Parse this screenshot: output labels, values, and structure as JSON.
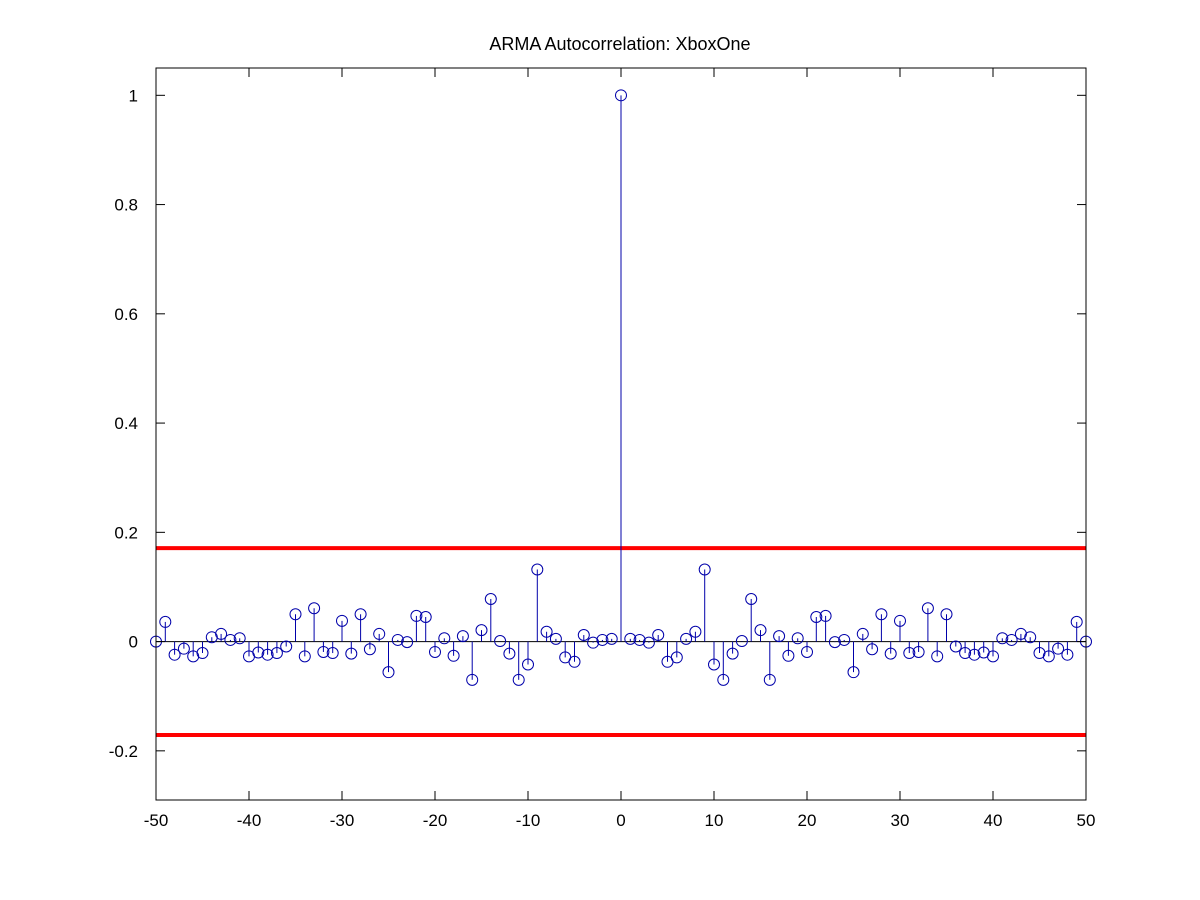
{
  "chart_data": {
    "type": "stem",
    "title": "ARMA Autocorrelation: XboxOne",
    "xlabel": "",
    "ylabel": "",
    "xlim": [
      -50,
      50
    ],
    "ylim": [
      -0.29,
      1.05
    ],
    "xticks": [
      -50,
      -40,
      -30,
      -20,
      -10,
      0,
      10,
      20,
      30,
      40,
      50
    ],
    "xtick_labels": [
      "-50",
      "-40",
      "-30",
      "-20",
      "-10",
      "0",
      "10",
      "20",
      "30",
      "40",
      "50"
    ],
    "yticks": [
      -0.2,
      0,
      0.2,
      0.4,
      0.6,
      0.8,
      1
    ],
    "ytick_labels": [
      "-0.2",
      "0",
      "0.2",
      "0.4",
      "0.6",
      "0.8",
      "1"
    ],
    "grid": false,
    "x": [
      -50,
      -49,
      -48,
      -47,
      -46,
      -45,
      -44,
      -43,
      -42,
      -41,
      -40,
      -39,
      -38,
      -37,
      -36,
      -35,
      -34,
      -33,
      -32,
      -31,
      -30,
      -29,
      -28,
      -27,
      -26,
      -25,
      -24,
      -23,
      -22,
      -21,
      -20,
      -19,
      -18,
      -17,
      -16,
      -15,
      -14,
      -13,
      -12,
      -11,
      -10,
      -9,
      -8,
      -7,
      -6,
      -5,
      -4,
      -3,
      -2,
      -1,
      0,
      1,
      2,
      3,
      4,
      5,
      6,
      7,
      8,
      9,
      10,
      11,
      12,
      13,
      14,
      15,
      16,
      17,
      18,
      19,
      20,
      21,
      22,
      23,
      24,
      25,
      26,
      27,
      28,
      29,
      30,
      31,
      32,
      33,
      34,
      35,
      36,
      37,
      38,
      39,
      40,
      41,
      42,
      43,
      44,
      45,
      46,
      47,
      48,
      49,
      50
    ],
    "series": [
      {
        "values": [
          0,
          0.036,
          -0.024,
          -0.013,
          -0.027,
          -0.021,
          0.008,
          0.014,
          0.003,
          0.006,
          -0.027,
          -0.02,
          -0.024,
          -0.021,
          -0.009,
          0.05,
          -0.027,
          0.061,
          -0.019,
          -0.021,
          0.038,
          -0.022,
          0.05,
          -0.014,
          0.014,
          -0.056,
          0.003,
          -0.001,
          0.047,
          0.045,
          -0.019,
          0.006,
          -0.026,
          0.01,
          -0.07,
          0.021,
          0.078,
          0.001,
          -0.022,
          -0.07,
          -0.042,
          0.132,
          0.018,
          0.005,
          -0.029,
          -0.037,
          0.012,
          -0.002,
          0.003,
          0.005,
          1,
          0.005,
          0.003,
          -0.002,
          0.012,
          -0.037,
          -0.029,
          0.005,
          0.018,
          0.132,
          -0.042,
          -0.07,
          -0.022,
          0.001,
          0.078,
          0.021,
          -0.07,
          0.01,
          -0.026,
          0.006,
          -0.019,
          0.045,
          0.047,
          -0.001,
          0.003,
          -0.056,
          0.014,
          -0.014,
          0.05,
          -0.022,
          0.038,
          -0.021,
          -0.019,
          0.061,
          -0.027,
          0.05,
          -0.009,
          -0.021,
          -0.024,
          -0.02,
          -0.027,
          0.006,
          0.003,
          0.014,
          0.008,
          -0.021,
          -0.027,
          -0.013,
          -0.024,
          0.036,
          0
        ],
        "color": "#0000aa",
        "marker": "circle"
      }
    ],
    "hlines": [
      {
        "value": 0.171,
        "color": "#ff0000"
      },
      {
        "value": -0.171,
        "color": "#ff0000"
      }
    ],
    "baseline_color": "#000000",
    "colors": {
      "axes": "#000000",
      "stem": "#0000aa",
      "bound": "#ff0000",
      "background": "#ffffff"
    }
  }
}
